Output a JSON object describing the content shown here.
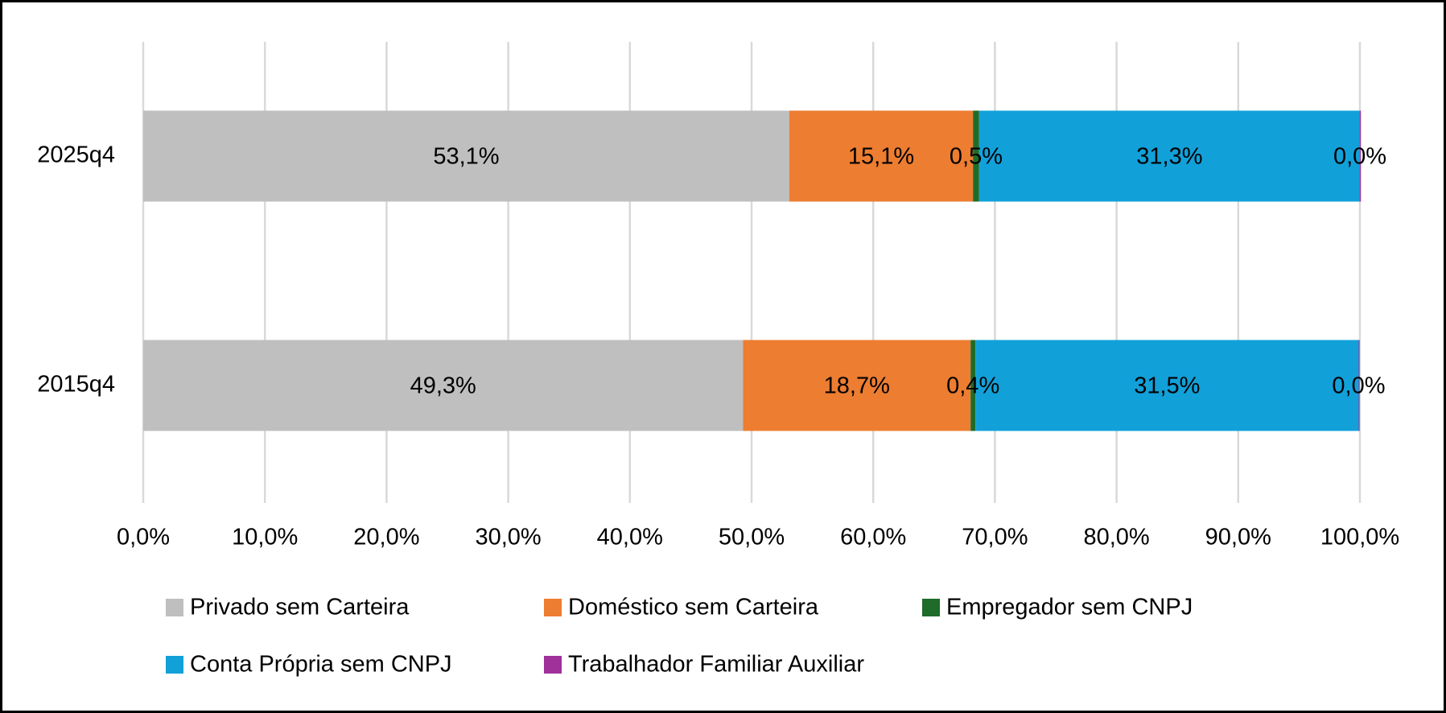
{
  "chart_data": {
    "type": "stacked-bar-horizontal",
    "categories": [
      "2025q4",
      "2015q4"
    ],
    "series": [
      {
        "name": "Privado sem Carteira",
        "color": "#bfbfbf",
        "values": [
          53.1,
          49.3
        ],
        "value_labels": [
          "53,1%",
          "49,3%"
        ]
      },
      {
        "name": "Doméstico sem Carteira",
        "color": "#ed7d31",
        "values": [
          15.1,
          18.7
        ],
        "value_labels": [
          "15,1%",
          "18,7%"
        ]
      },
      {
        "name": "Empregador sem CNPJ",
        "color": "#1e6b2a",
        "values": [
          0.5,
          0.4
        ],
        "value_labels": [
          "0,5%",
          "0,4%"
        ]
      },
      {
        "name": "Conta Própria sem CNPJ",
        "color": "#12a0d9",
        "values": [
          31.3,
          31.5
        ],
        "value_labels": [
          "31,3%",
          "31,5%"
        ]
      },
      {
        "name": "Trabalhador Familiar Auxiliar",
        "color": "#a0309a",
        "values": [
          0.0,
          0.0
        ],
        "value_labels": [
          "0,0%",
          "0,0%"
        ]
      }
    ],
    "xlim": [
      0,
      100
    ],
    "xticks": [
      {
        "value": 0,
        "label": "0,0%"
      },
      {
        "value": 10,
        "label": "10,0%"
      },
      {
        "value": 20,
        "label": "20,0%"
      },
      {
        "value": 30,
        "label": "30,0%"
      },
      {
        "value": 40,
        "label": "40,0%"
      },
      {
        "value": 50,
        "label": "50,0%"
      },
      {
        "value": 60,
        "label": "60,0%"
      },
      {
        "value": 70,
        "label": "70,0%"
      },
      {
        "value": 80,
        "label": "80,0%"
      },
      {
        "value": 90,
        "label": "90,0%"
      },
      {
        "value": 100,
        "label": "100,0%"
      }
    ],
    "grid": true,
    "legend": "bottom"
  }
}
